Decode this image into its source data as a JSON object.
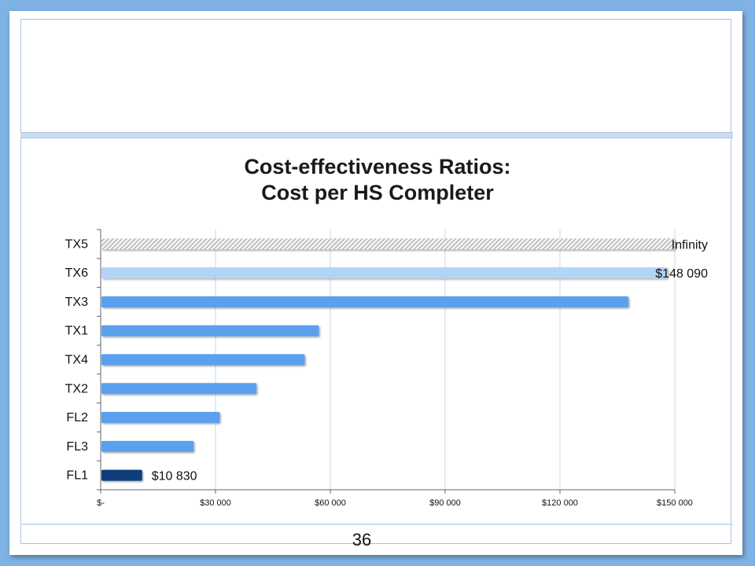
{
  "slide": {
    "page_number": "36"
  },
  "chart_data": {
    "type": "bar",
    "orientation": "horizontal",
    "title_line1": "Cost-effectiveness Ratios:",
    "title_line2": "Cost per HS Completer",
    "categories": [
      "TX5",
      "TX6",
      "TX3",
      "TX1",
      "TX4",
      "TX2",
      "FL2",
      "FL3",
      "FL1"
    ],
    "values": [
      null,
      148090,
      137900,
      57000,
      53300,
      40700,
      31100,
      24300,
      10830
    ],
    "bar_colors": [
      "#c8c8c8",
      "#b2d4f5",
      "#5aa0ee",
      "#5aa0ee",
      "#5aa0ee",
      "#5aa0ee",
      "#5aa0ee",
      "#5aa0ee",
      "#0b3d7a"
    ],
    "hatched": [
      true,
      false,
      false,
      false,
      false,
      false,
      false,
      false,
      false
    ],
    "data_labels": [
      {
        "category": "TX5",
        "text": "Infinity"
      },
      {
        "category": "TX6",
        "text": "$148 090"
      },
      {
        "category": "FL1",
        "text": "$10 830"
      }
    ],
    "x_ticks": [
      0,
      30000,
      60000,
      90000,
      120000,
      150000
    ],
    "x_tick_labels": [
      "$-",
      "$30 000",
      "$60 000",
      "$90 000",
      "$120 000",
      "$150 000"
    ],
    "xlim": [
      0,
      150000
    ],
    "grid": true,
    "legend": "none"
  }
}
